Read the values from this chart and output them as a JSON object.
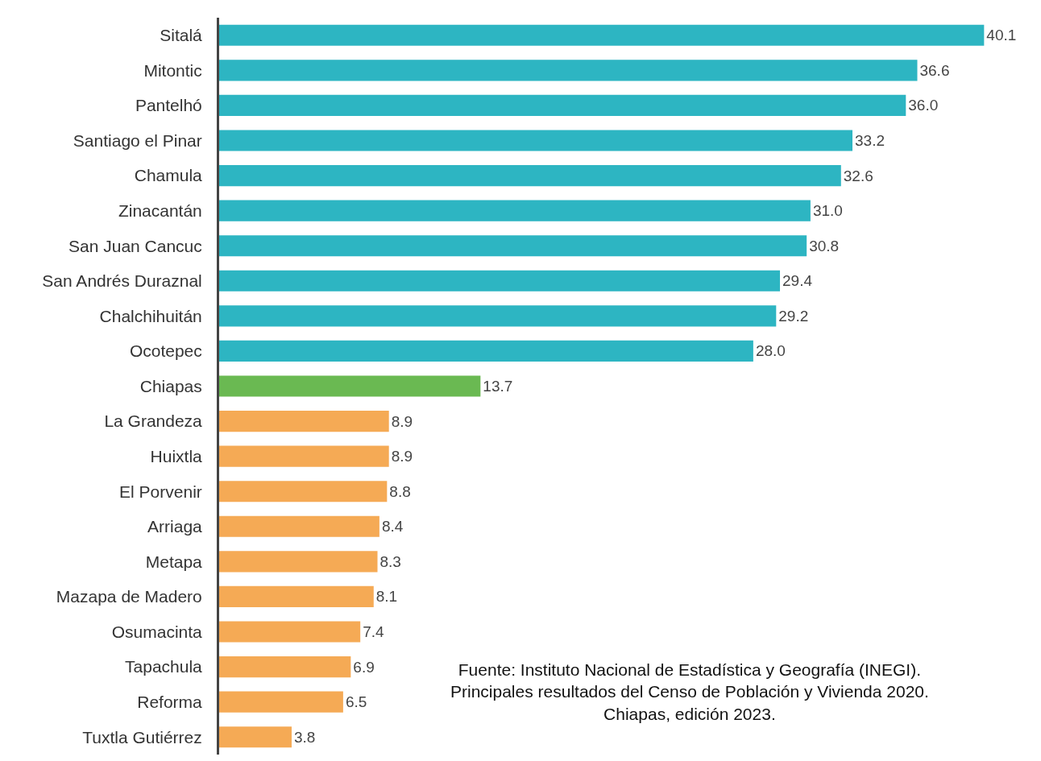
{
  "chart_data": {
    "type": "bar",
    "orientation": "horizontal",
    "categories": [
      "Sitalá",
      "Mitontic",
      "Pantelhó",
      "Santiago el Pinar",
      "Chamula",
      "Zinacantán",
      "San Juan Cancuc",
      "San Andrés Duraznal",
      "Chalchihuitán",
      "Ocotepec",
      "Chiapas",
      "La Grandeza",
      "Huixtla",
      "El Porvenir",
      "Arriaga",
      "Metapa",
      "Mazapa de Madero",
      "Osumacinta",
      "Tapachula",
      "Reforma",
      "Tuxtla Gutiérrez"
    ],
    "values": [
      40.1,
      36.6,
      36.0,
      33.2,
      32.6,
      31.0,
      30.8,
      29.4,
      29.2,
      28.0,
      13.7,
      8.9,
      8.9,
      8.8,
      8.4,
      8.3,
      8.1,
      7.4,
      6.9,
      6.5,
      3.8
    ],
    "value_labels": [
      "40.1",
      "36.6",
      "36.0",
      "33.2",
      "32.6",
      "31.0",
      "30.8",
      "29.4",
      "29.2",
      "28.0",
      "13.7",
      "8.9",
      "8.9",
      "8.8",
      "8.4",
      "8.3",
      "8.1",
      "7.4",
      "6.9",
      "6.5",
      "3.8"
    ],
    "colors": [
      "#2db5c2",
      "#2db5c2",
      "#2db5c2",
      "#2db5c2",
      "#2db5c2",
      "#2db5c2",
      "#2db5c2",
      "#2db5c2",
      "#2db5c2",
      "#2db5c2",
      "#6ab952",
      "#f5aa55",
      "#f5aa55",
      "#f5aa55",
      "#f5aa55",
      "#f5aa55",
      "#f5aa55",
      "#f5aa55",
      "#f5aa55",
      "#f5aa55",
      "#f5aa55"
    ],
    "xlim": [
      0,
      43
    ],
    "tick_labels": "y",
    "annotations": [
      "Fuente: Instituto Nacional de Estadística y Geografía (INEGI).\nPrincipales resultados del Censo de Población y Vivienda 2020.\nChiapas, edición 2023."
    ]
  }
}
